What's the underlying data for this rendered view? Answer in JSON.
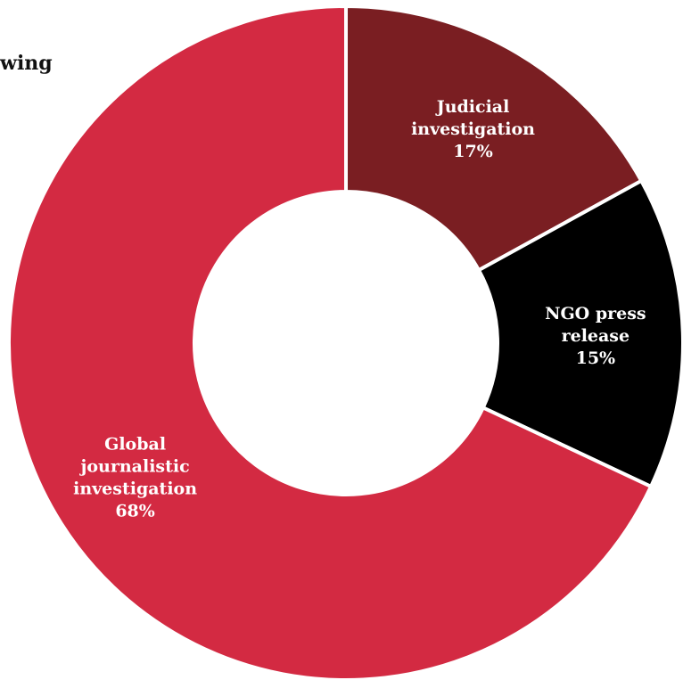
{
  "title_fragment": "wing",
  "chart_data": {
    "type": "pie",
    "donut": true,
    "categories": [
      "Judicial investigation",
      "NGO press release",
      "Global journalistic investigation"
    ],
    "values": [
      17,
      15,
      68
    ],
    "value_labels": [
      "17%",
      "15%",
      "68%"
    ],
    "label_lines": [
      [
        "Judicial",
        "investigation"
      ],
      [
        "NGO press",
        "release"
      ],
      [
        "Global",
        "journalistic",
        "investigation"
      ]
    ],
    "colors": [
      "#7a1e22",
      "#000000",
      "#d32a42"
    ]
  }
}
